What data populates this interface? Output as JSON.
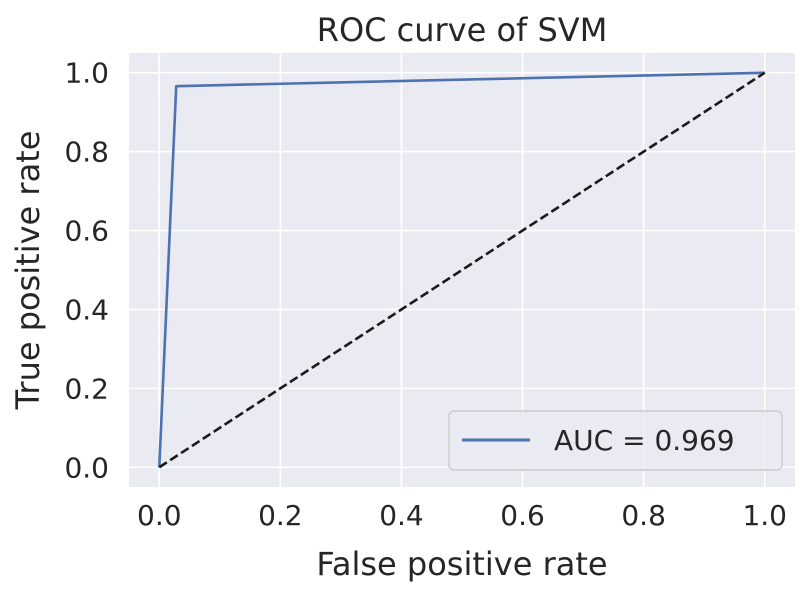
{
  "chart_data": {
    "type": "line",
    "title": "ROC curve of SVM",
    "xlabel": "False positive rate",
    "ylabel": "True positive rate",
    "xlim": [
      -0.05,
      1.05
    ],
    "ylim": [
      -0.05,
      1.05
    ],
    "xticks": [
      "0.0",
      "0.2",
      "0.4",
      "0.6",
      "0.8",
      "1.0"
    ],
    "yticks": [
      "0.0",
      "0.2",
      "0.4",
      "0.6",
      "0.8",
      "1.0"
    ],
    "grid": true,
    "legend_position": "lower-right",
    "series": [
      {
        "name": "AUC = 0.969",
        "color": "#4c72b0",
        "style": "solid",
        "x": [
          0.0,
          0.028,
          1.0
        ],
        "y": [
          0.0,
          0.966,
          1.0
        ]
      },
      {
        "color": "#1a1a1a",
        "style": "dashed",
        "x": [
          0.0,
          1.0
        ],
        "y": [
          0.0,
          1.0
        ]
      }
    ],
    "colors": {
      "plot_background": "#eaeaf2",
      "grid": "#ffffff",
      "text": "#262626"
    }
  }
}
